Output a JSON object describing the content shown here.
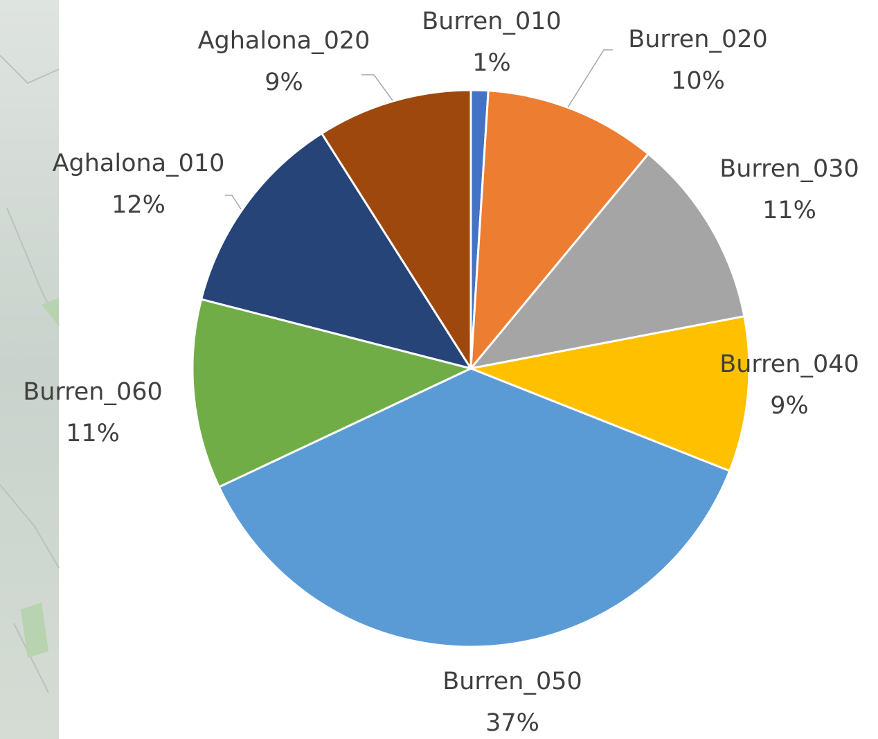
{
  "chart_data": {
    "type": "pie",
    "categories": [
      "Burren_010",
      "Burren_020",
      "Burren_030",
      "Burren_040",
      "Burren_050",
      "Burren_060",
      "Aghalona_010",
      "Aghalona_020"
    ],
    "values": [
      1,
      10,
      11,
      9,
      37,
      11,
      12,
      9
    ],
    "value_labels": [
      "1%",
      "10%",
      "11%",
      "9%",
      "37%",
      "11%",
      "12%",
      "9%"
    ],
    "colors": [
      "#4472c4",
      "#ed7d31",
      "#a5a5a5",
      "#ffc000",
      "#5b9bd5",
      "#70ad47",
      "#264478",
      "#9e480e"
    ]
  }
}
